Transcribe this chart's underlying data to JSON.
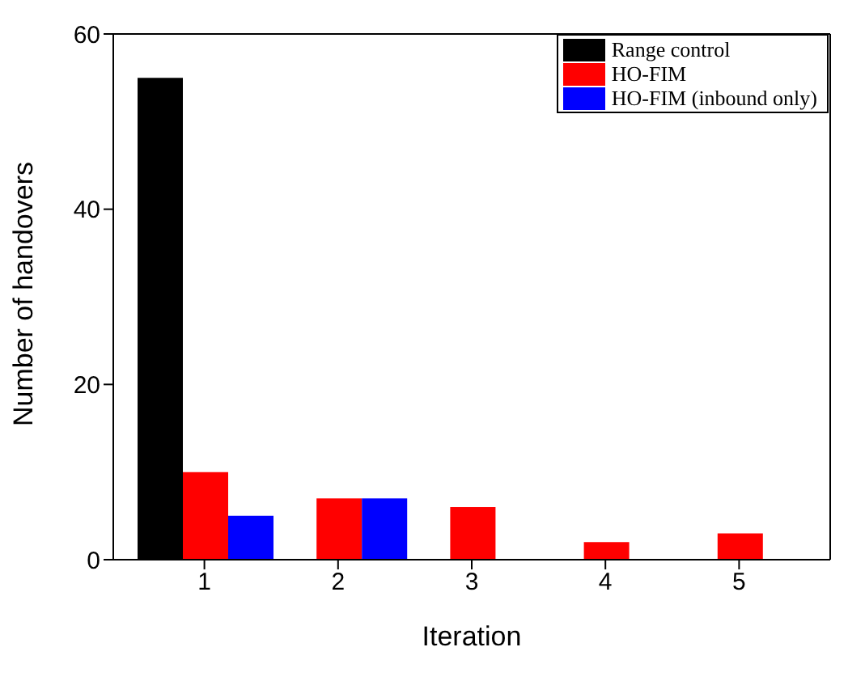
{
  "chart_data": {
    "type": "bar",
    "xlabel": "Iteration",
    "ylabel": "Number of handovers",
    "categories": [
      "1",
      "2",
      "3",
      "4",
      "5"
    ],
    "series": [
      {
        "name": "Range control",
        "color": "#000000",
        "values": [
          55,
          0,
          0,
          0,
          0
        ]
      },
      {
        "name": "HO-FIM",
        "color": "#ff0000",
        "values": [
          10,
          7,
          6,
          2,
          3
        ]
      },
      {
        "name": "HO-FIM (inbound only)",
        "color": "#0000ff",
        "values": [
          5,
          7,
          0,
          0,
          0
        ]
      }
    ],
    "ylim": [
      0,
      60
    ],
    "yticks": [
      0,
      20,
      40,
      60
    ],
    "legend": "top right"
  }
}
